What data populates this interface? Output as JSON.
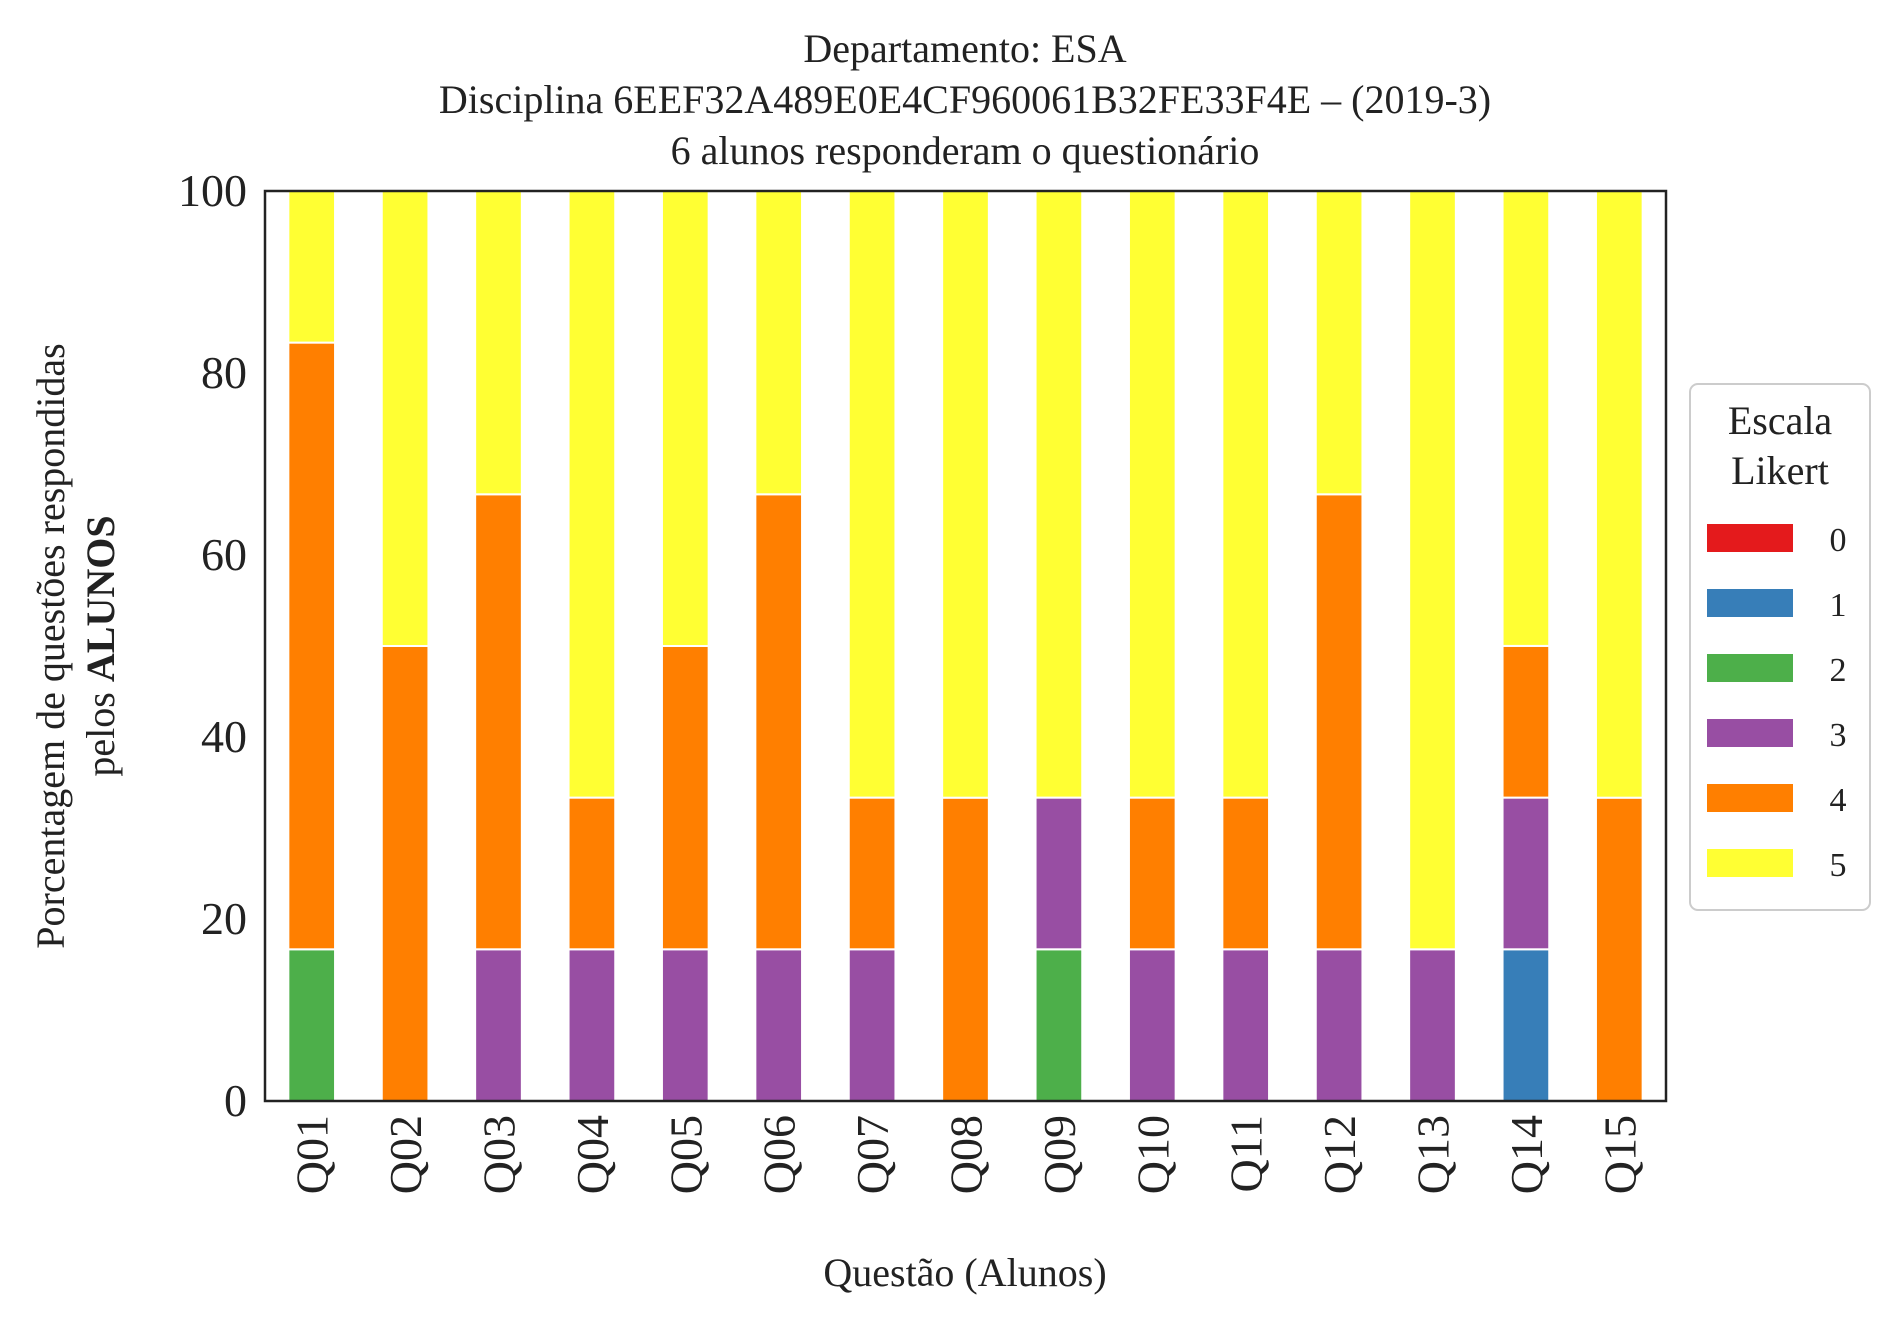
{
  "chart_data": {
    "type": "bar",
    "stacked": true,
    "title_lines": [
      "Departamento: ESA",
      "Disciplina 6EEF32A489E0E4CF960061B32FE33F4E – (2019-3)",
      "6 alunos responderam o questionário"
    ],
    "xlabel": "Questão (Alunos)",
    "ylabel_line1": "Porcentagem de questões respondidas",
    "ylabel_line2_prefix": "pelos ",
    "ylabel_line2_bold": "ALUNOS",
    "ylim": [
      0,
      100
    ],
    "yticks": [
      "0",
      "20",
      "40",
      "60",
      "80",
      "100"
    ],
    "grid": false,
    "legend_position": "right",
    "legend_title_lines": [
      "Escala",
      "Likert"
    ],
    "categories": [
      "Q01",
      "Q02",
      "Q03",
      "Q04",
      "Q05",
      "Q06",
      "Q07",
      "Q08",
      "Q09",
      "Q10",
      "Q11",
      "Q12",
      "Q13",
      "Q14",
      "Q15"
    ],
    "series": [
      {
        "name": "0",
        "color": "#e41a1c",
        "values": [
          0,
          0,
          0,
          0,
          0,
          0,
          0,
          0,
          0,
          0,
          0,
          0,
          0,
          0,
          0
        ]
      },
      {
        "name": "1",
        "color": "#377eb8",
        "values": [
          0,
          0,
          0,
          0,
          0,
          0,
          0,
          0,
          0,
          0,
          0,
          0,
          0,
          16.67,
          0
        ]
      },
      {
        "name": "2",
        "color": "#4daf4a",
        "values": [
          16.67,
          0,
          0,
          0,
          0,
          0,
          0,
          0,
          16.67,
          0,
          0,
          0,
          0,
          0,
          0
        ]
      },
      {
        "name": "3",
        "color": "#984ea3",
        "values": [
          0,
          0,
          16.67,
          16.67,
          16.67,
          16.67,
          16.67,
          0,
          16.67,
          16.67,
          16.67,
          16.67,
          16.67,
          16.67,
          0
        ]
      },
      {
        "name": "4",
        "color": "#ff7f00",
        "values": [
          66.67,
          50,
          50,
          16.67,
          33.33,
          50,
          16.67,
          33.33,
          0,
          16.67,
          16.67,
          50,
          0,
          16.67,
          33.33
        ]
      },
      {
        "name": "5",
        "color": "#ffff33",
        "values": [
          16.67,
          50,
          33.33,
          66.67,
          50,
          33.33,
          66.67,
          66.67,
          66.67,
          66.67,
          66.67,
          33.33,
          83.33,
          50,
          66.67
        ]
      }
    ]
  }
}
